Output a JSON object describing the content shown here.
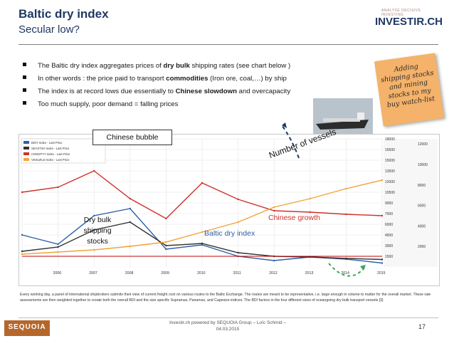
{
  "header": {
    "title": "Baltic dry index",
    "subtitle": "Secular low?"
  },
  "logo": {
    "tagline": "ANALYSE DECISIVE INVESTING",
    "name": "INVESTIR.CH"
  },
  "bullets": [
    {
      "pre": "The Baltic dry index aggregates prices of ",
      "bold": "dry bulk",
      "post": " shipping rates (see chart below )"
    },
    {
      "pre": "In other words : the price paid to transport ",
      "bold": "commodities",
      "post": " (Iron ore, coal,…) by ship"
    },
    {
      "pre": "The index is at record lows due essentially to ",
      "bold": "Chinese slowdown",
      "post": " and overcapacity"
    },
    {
      "pre": "Too much supply, poor demand = falling prices",
      "bold": "",
      "post": ""
    }
  ],
  "sticky_note": {
    "text": "Adding shipping stocks and mining stocks to my buy watch-list",
    "color": "#f4b26a"
  },
  "chart_labels": {
    "chinese_bubble": "Chinese bubble",
    "number_of_vessels": "Number of vessels",
    "chinese_growth": "Chinese growth",
    "baltic_dry_index": "Baltic dry index",
    "dry_bulk_stocks": "Dry bulk shipping stocks"
  },
  "chart_data": {
    "type": "line",
    "x": [
      2005,
      2006,
      2007,
      2008,
      2009,
      2010,
      2011,
      2012,
      2013,
      2014,
      2015
    ],
    "xticks": [
      "2006",
      "2007",
      "2008",
      "2009",
      "2010",
      "2011",
      "2012",
      "2013",
      "2014",
      "2015"
    ],
    "y_left_ticks": [
      1500,
      3000,
      4500,
      6000,
      7500,
      9000,
      10500,
      12000,
      13500,
      15000,
      16500,
      18000
    ],
    "y_right_ticks": [
      2000,
      4000,
      6000,
      8000,
      10000,
      12000
    ],
    "legend": [
      "BDIY Index - Last Price",
      "SEASTSH Index - Last Price",
      "CNGDPYY Index - Last Price",
      "VESLWLD Index - Last Price"
    ],
    "legend_placement": "top-left",
    "grid": true,
    "colors": {
      "bdi": "#2e5fa8",
      "stocks": "#333333",
      "china": "#d0312d",
      "vessels": "#f2a33a"
    },
    "series": [
      {
        "name": "Baltic dry index",
        "values": [
          4500,
          3200,
          7200,
          8200,
          2500,
          3100,
          1500,
          900,
          1400,
          1100,
          550
        ]
      },
      {
        "name": "Dry bulk shipping stocks",
        "values": [
          2200,
          2800,
          5200,
          6300,
          3000,
          3300,
          2000,
          1500,
          1400,
          1200,
          1050
        ]
      },
      {
        "name": "Chinese growth",
        "values": [
          10500,
          11200,
          13500,
          9600,
          6800,
          11800,
          9500,
          7900,
          7700,
          7400,
          7200
        ]
      },
      {
        "name": "Number of vessels",
        "values": [
          1800,
          2100,
          2400,
          2900,
          3500,
          4900,
          6300,
          8400,
          9600,
          11000,
          12200
        ]
      }
    ]
  },
  "footnote": "Every working day, a panel of international shipbrokers submits their view of current freight cost on various routes to the Baltic Exchange. The routes are meant to be representative, i.e. large enough in volume to matter for the overall market. These rate assessments are then weighted together to create both the overall BDI and the size specific Supramax, Panamax, and Capesize indices. The BDI factors in the four different sizes of oceangoing dry bulk transport vessels [3]",
  "footer": {
    "brand": "SEQUOIA",
    "powered_by": "Investir.ch powered by SEQUOIA Group – Loïc Schmid –",
    "date": "04.03.2015",
    "page": "17"
  }
}
